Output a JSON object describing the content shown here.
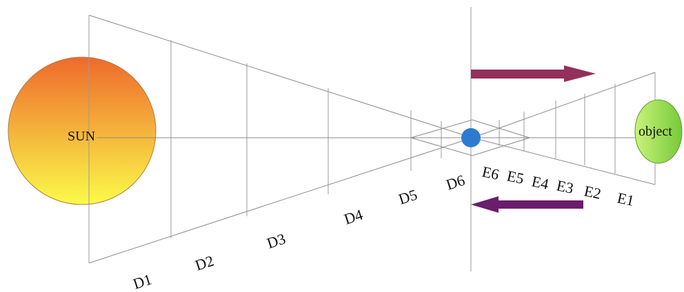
{
  "sun_label": "SUN",
  "object_label": "object",
  "d_labels": [
    "D1",
    "D2",
    "D3",
    "D4",
    "D5",
    "D6"
  ],
  "e_labels": [
    "E6",
    "E5",
    "E4",
    "E3",
    "E2",
    "E1"
  ],
  "colors": {
    "sun_top": "#ee6a2c",
    "sun_bottom": "#fbfb4a",
    "object_light": "#c9f37a",
    "object_dark": "#77c93a",
    "planet": "#2d7bd1",
    "arrow_right": "#93305c",
    "arrow_left": "#6a1d6b"
  }
}
